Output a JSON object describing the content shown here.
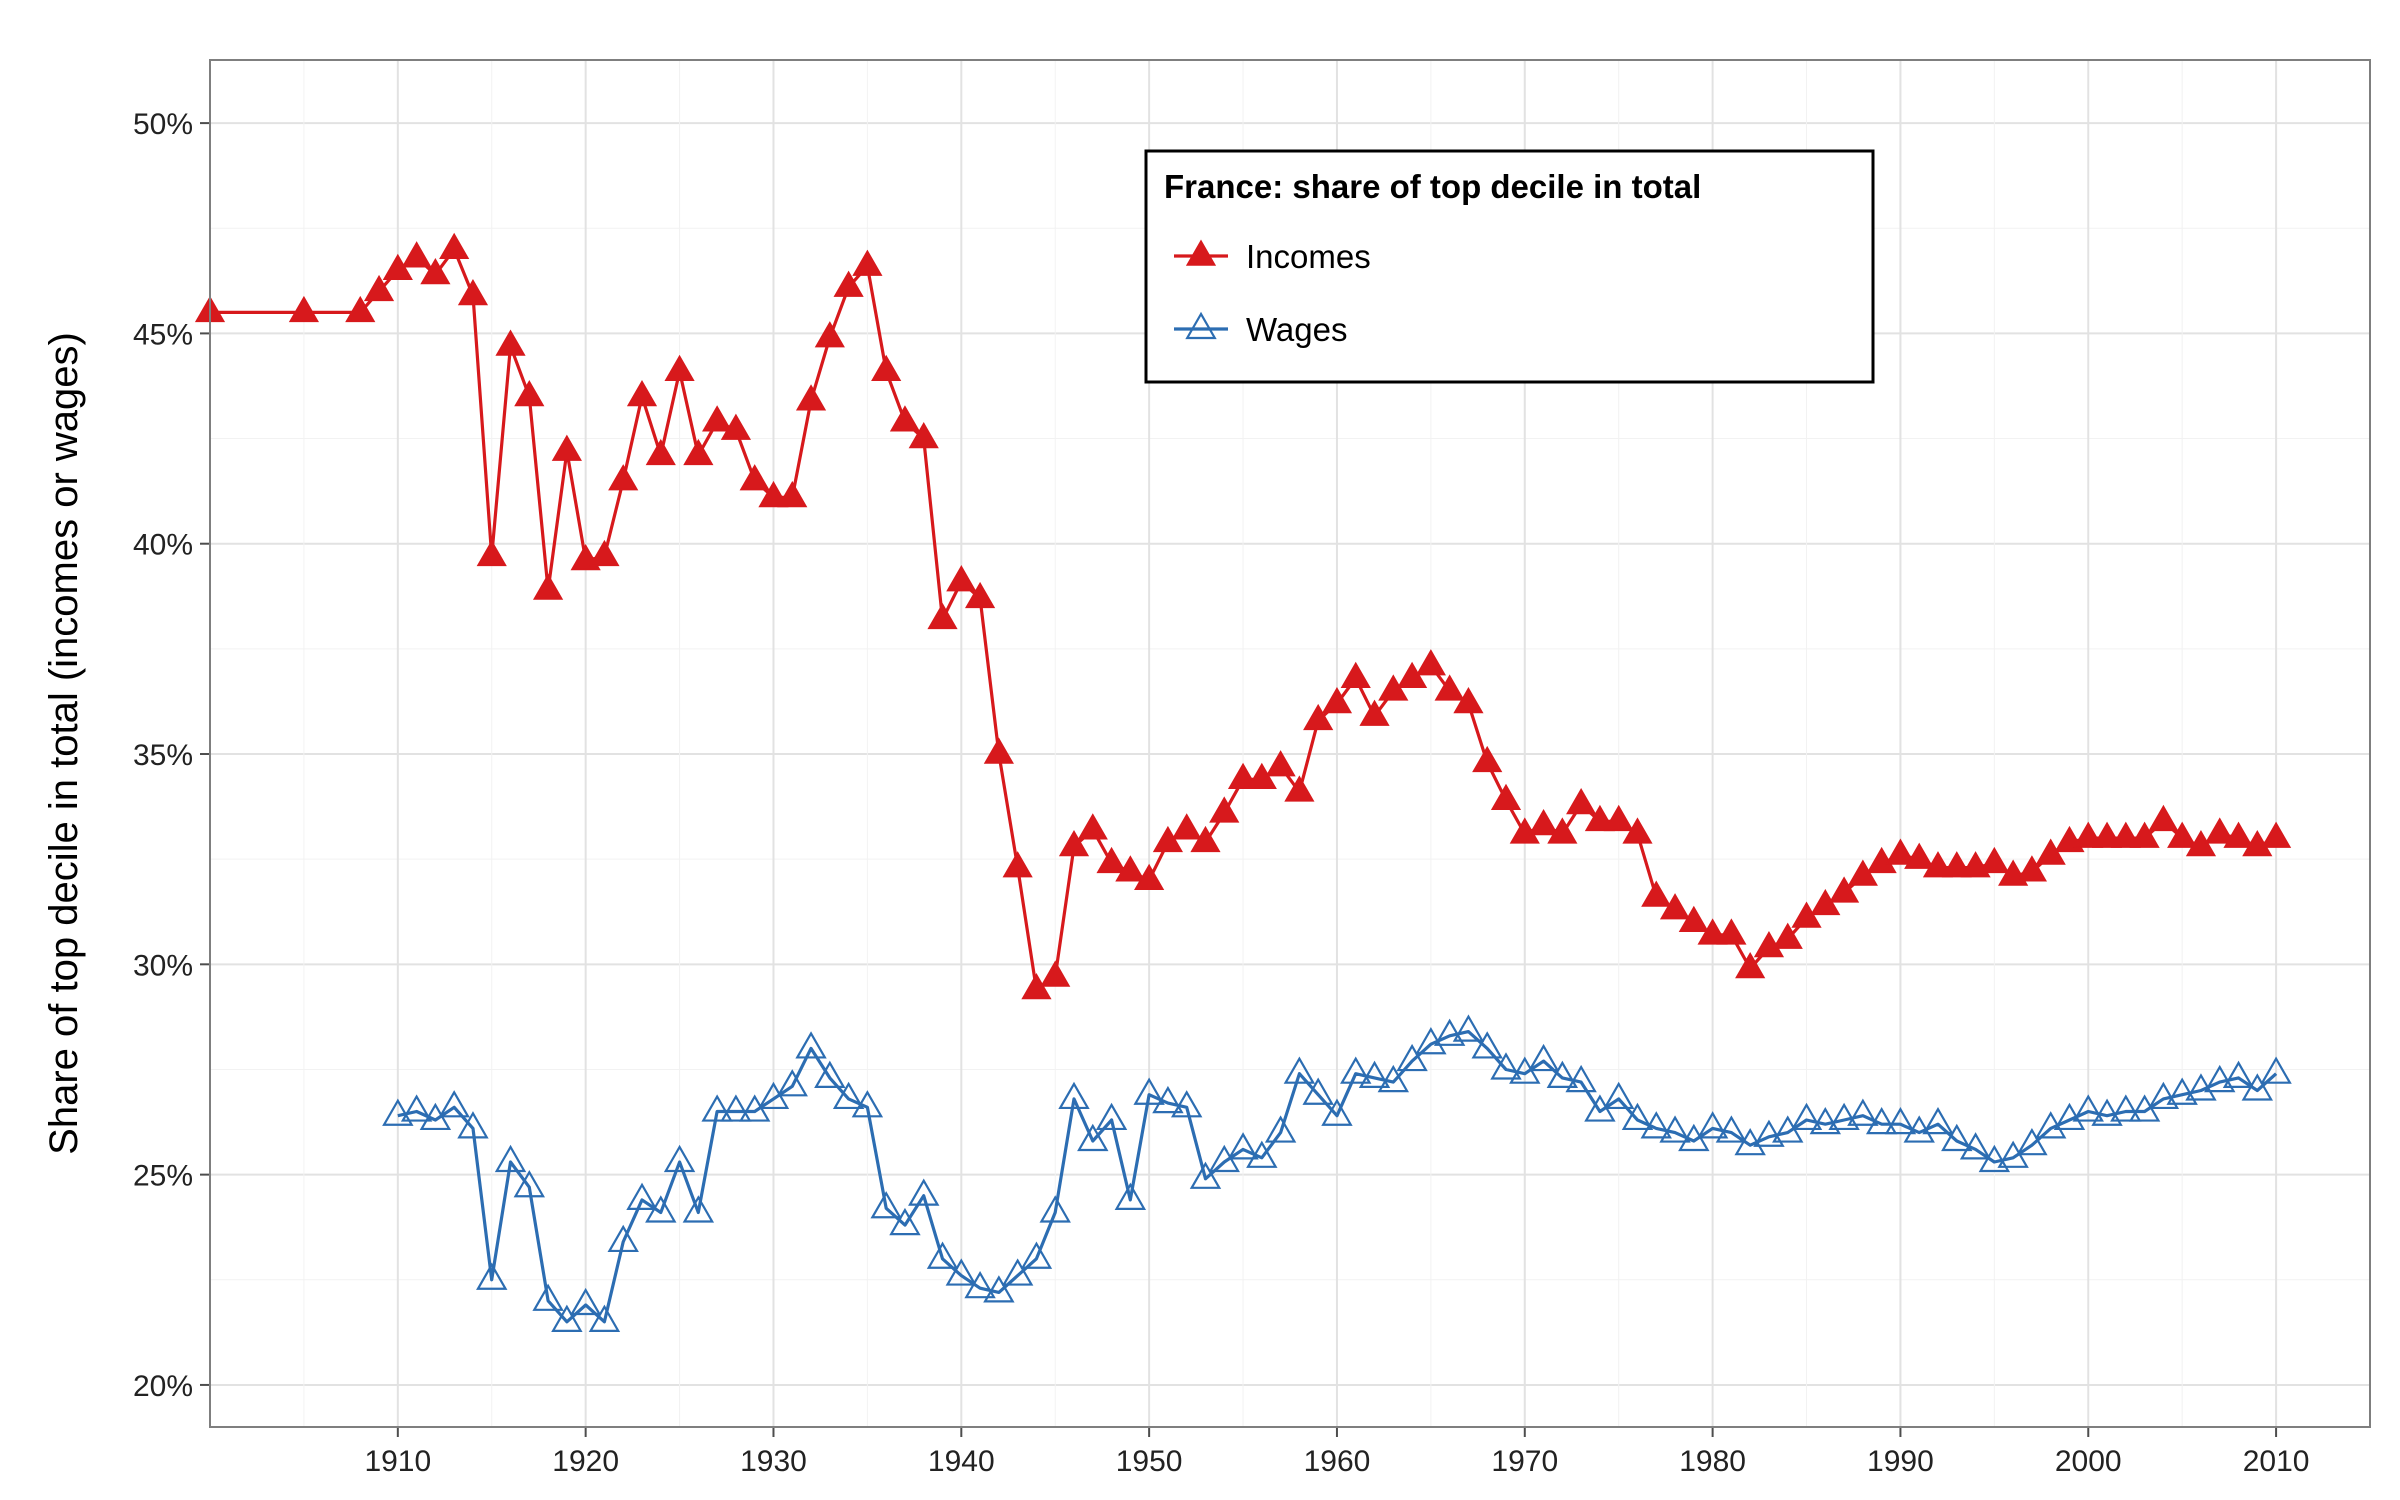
{
  "chart_data": {
    "type": "line",
    "title": "",
    "xlabel": "",
    "ylabel": "Share of top decile in total (incomes or wages)",
    "xlim": [
      1900,
      2015
    ],
    "ylim": [
      19.0,
      51.5
    ],
    "x_ticks": [
      1910,
      1920,
      1930,
      1940,
      1950,
      1960,
      1970,
      1980,
      1990,
      2000,
      2010
    ],
    "x_tick_labels": [
      "1910",
      "1920",
      "1930",
      "1940",
      "1950",
      "1960",
      "1970",
      "1980",
      "1990",
      "2000",
      "2010"
    ],
    "y_ticks": [
      20,
      25,
      30,
      35,
      40,
      45,
      50
    ],
    "y_tick_labels": [
      "20%",
      "25%",
      "30%",
      "35%",
      "40%",
      "45%",
      "50%"
    ],
    "grid": true,
    "legend": {
      "title": "France: share of top decile in total",
      "position": "top-center",
      "entries": [
        "Incomes",
        "Wages"
      ]
    },
    "series": [
      {
        "name": "Incomes",
        "color": "#d7191c",
        "marker": "filled-triangle",
        "x": [
          1900,
          1905,
          1908,
          1909,
          1910,
          1911,
          1912,
          1913,
          1914,
          1915,
          1916,
          1917,
          1918,
          1919,
          1920,
          1921,
          1922,
          1923,
          1924,
          1925,
          1926,
          1927,
          1928,
          1929,
          1930,
          1931,
          1932,
          1933,
          1934,
          1935,
          1936,
          1937,
          1938,
          1939,
          1940,
          1941,
          1942,
          1943,
          1944,
          1945,
          1946,
          1947,
          1948,
          1949,
          1950,
          1951,
          1952,
          1953,
          1954,
          1955,
          1956,
          1957,
          1958,
          1959,
          1960,
          1961,
          1962,
          1963,
          1964,
          1965,
          1966,
          1967,
          1968,
          1969,
          1970,
          1971,
          1972,
          1973,
          1974,
          1975,
          1976,
          1977,
          1978,
          1979,
          1980,
          1981,
          1982,
          1983,
          1984,
          1985,
          1986,
          1987,
          1988,
          1989,
          1990,
          1991,
          1992,
          1993,
          1994,
          1995,
          1996,
          1997,
          1998,
          1999,
          2000,
          2001,
          2002,
          2003,
          2004,
          2005,
          2006,
          2007,
          2008,
          2009,
          2010
        ],
        "y": [
          45.5,
          45.5,
          45.5,
          46.0,
          46.5,
          46.8,
          46.4,
          47.0,
          45.9,
          39.7,
          44.7,
          43.5,
          38.9,
          42.2,
          39.6,
          39.7,
          41.5,
          43.5,
          42.1,
          44.1,
          42.1,
          42.9,
          42.7,
          41.5,
          41.1,
          41.1,
          43.4,
          44.9,
          46.1,
          46.6,
          44.1,
          42.9,
          42.5,
          38.2,
          39.1,
          38.7,
          35.0,
          32.3,
          29.4,
          29.7,
          32.8,
          33.2,
          32.4,
          32.2,
          32.0,
          32.9,
          33.2,
          32.9,
          33.6,
          34.4,
          34.4,
          34.7,
          34.1,
          35.8,
          36.2,
          36.8,
          35.9,
          36.5,
          36.8,
          37.1,
          36.5,
          36.2,
          34.8,
          33.9,
          33.1,
          33.3,
          33.1,
          33.8,
          33.4,
          33.4,
          33.1,
          31.6,
          31.3,
          31.0,
          30.7,
          30.7,
          29.9,
          30.4,
          30.6,
          31.1,
          31.4,
          31.7,
          32.1,
          32.4,
          32.6,
          32.5,
          32.3,
          32.3,
          32.3,
          32.4,
          32.1,
          32.2,
          32.6,
          32.9,
          33.0,
          33.0,
          33.0,
          33.0,
          33.4,
          33.0,
          32.8,
          33.1,
          33.0,
          32.8,
          33.0
        ]
      },
      {
        "name": "Wages",
        "color": "#2c6db2",
        "marker": "open-triangle",
        "x": [
          1910,
          1911,
          1912,
          1913,
          1914,
          1915,
          1916,
          1917,
          1918,
          1919,
          1920,
          1921,
          1922,
          1923,
          1924,
          1925,
          1926,
          1927,
          1928,
          1929,
          1930,
          1931,
          1932,
          1933,
          1934,
          1935,
          1936,
          1937,
          1938,
          1939,
          1940,
          1941,
          1942,
          1943,
          1944,
          1945,
          1946,
          1947,
          1948,
          1949,
          1950,
          1951,
          1952,
          1953,
          1954,
          1955,
          1956,
          1957,
          1958,
          1959,
          1960,
          1961,
          1962,
          1963,
          1964,
          1965,
          1966,
          1967,
          1968,
          1969,
          1970,
          1971,
          1972,
          1973,
          1974,
          1975,
          1976,
          1977,
          1978,
          1979,
          1980,
          1981,
          1982,
          1983,
          1984,
          1985,
          1986,
          1987,
          1988,
          1989,
          1990,
          1991,
          1992,
          1993,
          1994,
          1995,
          1996,
          1997,
          1998,
          1999,
          2000,
          2001,
          2002,
          2003,
          2004,
          2005,
          2006,
          2007,
          2008,
          2009,
          2010
        ],
        "y": [
          26.4,
          26.5,
          26.3,
          26.6,
          26.1,
          22.5,
          25.3,
          24.7,
          22.0,
          21.5,
          21.9,
          21.5,
          23.4,
          24.4,
          24.1,
          25.3,
          24.1,
          26.5,
          26.5,
          26.5,
          26.8,
          27.1,
          28.0,
          27.3,
          26.8,
          26.6,
          24.2,
          23.8,
          24.5,
          23.0,
          22.6,
          22.3,
          22.2,
          22.6,
          23.0,
          24.1,
          26.8,
          25.8,
          26.3,
          24.4,
          26.9,
          26.7,
          26.6,
          24.9,
          25.3,
          25.6,
          25.4,
          26.0,
          27.4,
          26.9,
          26.4,
          27.4,
          27.3,
          27.2,
          27.7,
          28.1,
          28.3,
          28.4,
          28.0,
          27.5,
          27.4,
          27.7,
          27.3,
          27.2,
          26.5,
          26.8,
          26.3,
          26.1,
          26.0,
          25.8,
          26.1,
          26.0,
          25.7,
          25.9,
          26.0,
          26.3,
          26.2,
          26.3,
          26.4,
          26.2,
          26.2,
          26.0,
          26.2,
          25.8,
          25.6,
          25.3,
          25.4,
          25.7,
          26.1,
          26.3,
          26.5,
          26.4,
          26.5,
          26.5,
          26.8,
          26.9,
          27.0,
          27.2,
          27.3,
          27.0,
          27.4
        ]
      }
    ]
  }
}
